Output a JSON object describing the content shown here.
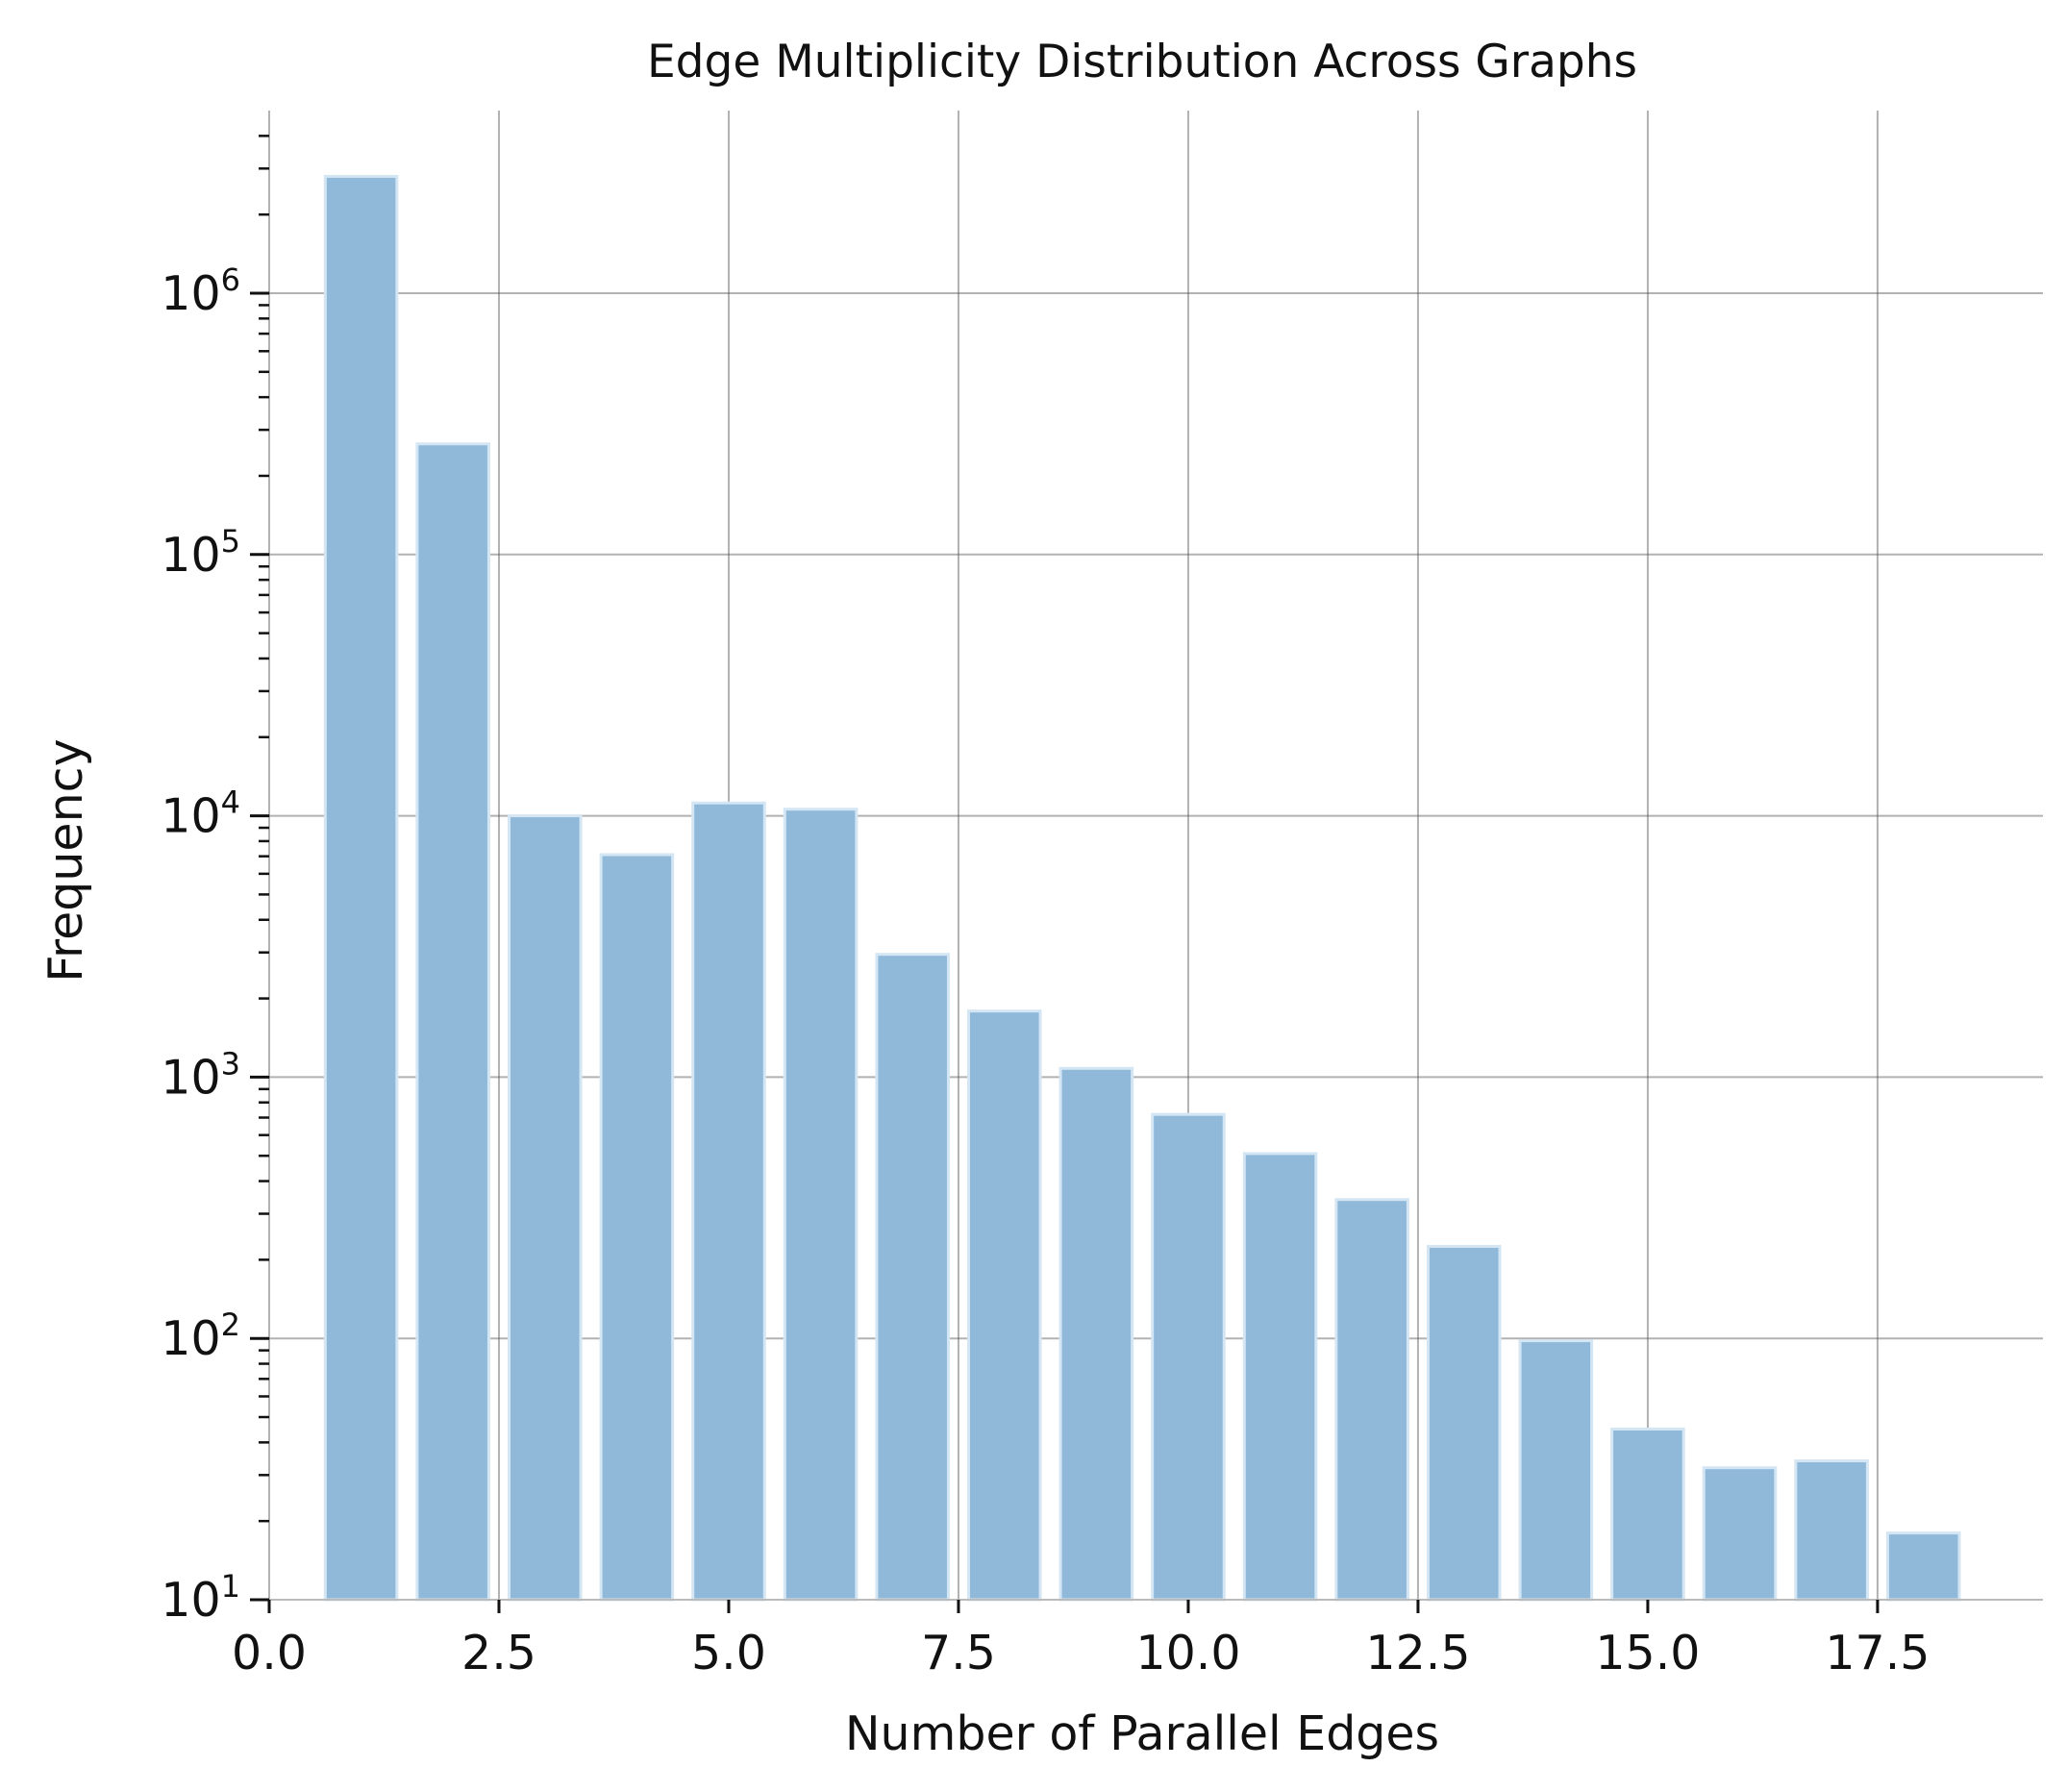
{
  "chart_data": {
    "type": "bar",
    "title": "Edge Multiplicity Distribution Across Graphs",
    "xlabel": "Number of Parallel Edges",
    "ylabel": "Frequency",
    "yscale": "log",
    "x": [
      1,
      2,
      3,
      4,
      5,
      6,
      7,
      8,
      9,
      10,
      11,
      12,
      13,
      14,
      15,
      16,
      17,
      18
    ],
    "values": [
      2800000,
      265000,
      10000,
      7100,
      11200,
      10600,
      2950,
      1790,
      1080,
      720,
      510,
      340,
      225,
      98,
      45,
      32,
      34,
      18
    ],
    "xlim": [
      0,
      19.3
    ],
    "ylim": [
      10,
      5000000
    ],
    "xticks": [
      "0.0",
      "2.5",
      "5.0",
      "7.5",
      "10.0",
      "12.5",
      "15.0",
      "17.5"
    ],
    "yticks": [
      {
        "base": "10",
        "exp": "1"
      },
      {
        "base": "10",
        "exp": "2"
      },
      {
        "base": "10",
        "exp": "3"
      },
      {
        "base": "10",
        "exp": "4"
      },
      {
        "base": "10",
        "exp": "5"
      },
      {
        "base": "10",
        "exp": "6"
      }
    ],
    "grid": true,
    "bar_color": "#8fb8d9",
    "bar_edge_color": "#d4e6f3",
    "grid_color": "#555555"
  }
}
